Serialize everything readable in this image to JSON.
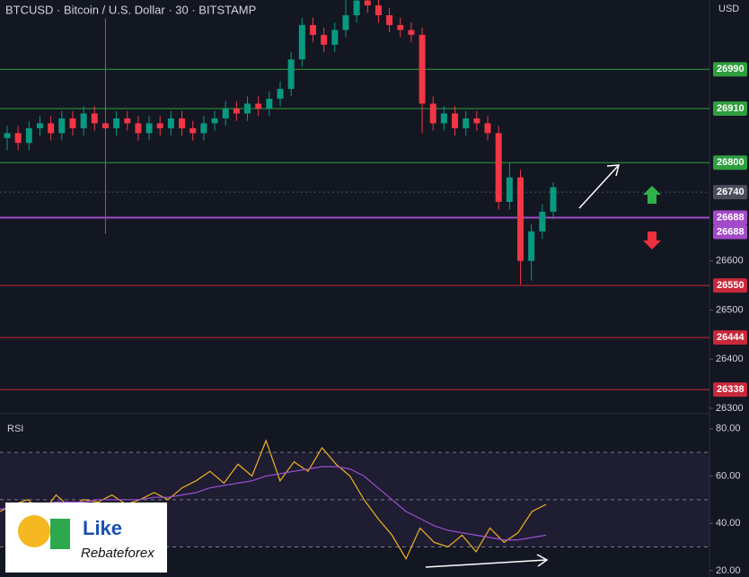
{
  "chart_data": {
    "type": "candlestick",
    "title": "BTCUSD · Bitcoin / U.S. Dollar · 30 · BITSTAMP",
    "currency": "USD",
    "up_color": "#089981",
    "down_color": "#f23645",
    "ylim": [
      26289,
      27131
    ],
    "yticks": [
      26300,
      26400,
      26500,
      26600
    ],
    "candles": [
      [
        26850,
        26875,
        26825,
        26860
      ],
      [
        26860,
        26875,
        26825,
        26840
      ],
      [
        26840,
        26885,
        26825,
        26870
      ],
      [
        26870,
        26895,
        26855,
        26880
      ],
      [
        26880,
        26895,
        26845,
        26860
      ],
      [
        26860,
        26905,
        26845,
        26890
      ],
      [
        26890,
        26905,
        26855,
        26870
      ],
      [
        26870,
        26915,
        26855,
        26900
      ],
      [
        26900,
        26915,
        26865,
        26880
      ],
      [
        26880,
        27094,
        26655,
        26870
      ],
      [
        26870,
        26905,
        26855,
        26890
      ],
      [
        26890,
        26905,
        26865,
        26880
      ],
      [
        26880,
        26895,
        26845,
        26860
      ],
      [
        26860,
        26895,
        26845,
        26880
      ],
      [
        26880,
        26895,
        26855,
        26870
      ],
      [
        26870,
        26905,
        26855,
        26890
      ],
      [
        26890,
        26905,
        26855,
        26870
      ],
      [
        26870,
        26885,
        26845,
        26860
      ],
      [
        26860,
        26895,
        26845,
        26880
      ],
      [
        26880,
        26905,
        26865,
        26890
      ],
      [
        26890,
        26925,
        26875,
        26910
      ],
      [
        26910,
        26925,
        26885,
        26900
      ],
      [
        26900,
        26935,
        26885,
        26920
      ],
      [
        26920,
        26935,
        26895,
        26910
      ],
      [
        26910,
        26945,
        26895,
        26930
      ],
      [
        26930,
        26965,
        26915,
        26950
      ],
      [
        26950,
        27025,
        26935,
        27010
      ],
      [
        27010,
        27095,
        26995,
        27080
      ],
      [
        27080,
        27095,
        27045,
        27060
      ],
      [
        27060,
        27075,
        27025,
        27040
      ],
      [
        27040,
        27085,
        27025,
        27070
      ],
      [
        27070,
        27131,
        27055,
        27100
      ],
      [
        27100,
        27131,
        27085,
        27130
      ],
      [
        27130,
        27131,
        27105,
        27120
      ],
      [
        27120,
        27131,
        27085,
        27100
      ],
      [
        27100,
        27115,
        27065,
        27080
      ],
      [
        27080,
        27095,
        27055,
        27070
      ],
      [
        27070,
        27085,
        27045,
        27060
      ],
      [
        27060,
        27075,
        26860,
        26920
      ],
      [
        26920,
        26935,
        26865,
        26880
      ],
      [
        26880,
        26915,
        26865,
        26900
      ],
      [
        26900,
        26915,
        26855,
        26870
      ],
      [
        26870,
        26905,
        26855,
        26890
      ],
      [
        26890,
        26905,
        26865,
        26880
      ],
      [
        26880,
        26895,
        26845,
        26860
      ],
      [
        26860,
        26875,
        26705,
        26720
      ],
      [
        26720,
        26800,
        26705,
        26770
      ],
      [
        26770,
        26785,
        26552,
        26600
      ],
      [
        26600,
        26675,
        26560,
        26660
      ],
      [
        26660,
        26715,
        26645,
        26700
      ],
      [
        26700,
        26760,
        26685,
        26750
      ]
    ],
    "levels": [
      {
        "value": 26990,
        "color": "#2e9e3e"
      },
      {
        "value": 26910,
        "color": "#2e9e3e"
      },
      {
        "value": 26800,
        "color": "#2e9e3e"
      },
      {
        "value": 26740,
        "color": "#4a4e59"
      },
      {
        "value": 26688,
        "color": "#a24ac9"
      },
      {
        "value": 26688,
        "color": "#a24ac9"
      },
      {
        "value": 26550,
        "color": "#c8283a"
      },
      {
        "value": 26444,
        "color": "#c8283a"
      },
      {
        "value": 26338,
        "color": "#c8283a"
      }
    ],
    "rsi": {
      "title": "RSI",
      "ylim": [
        17.3,
        86
      ],
      "yticks": [
        {
          "value": 80,
          "label": "80.00"
        },
        {
          "value": 60,
          "label": "60.00"
        },
        {
          "value": 40,
          "label": "40.00"
        },
        {
          "value": 20,
          "label": "20.00"
        }
      ],
      "bands": [
        70,
        50,
        30
      ],
      "series": [
        {
          "color": "#f2b21f",
          "values": [
            45,
            48,
            50,
            44,
            52,
            47,
            50,
            49,
            52,
            48,
            50,
            53,
            50,
            55,
            58,
            62,
            57,
            65,
            60,
            75,
            58,
            66,
            62,
            72,
            65,
            60,
            50,
            42,
            35,
            25,
            38,
            32,
            30,
            35,
            28,
            38,
            32,
            36,
            45,
            48
          ]
        },
        {
          "color": "#9c4fd0",
          "values": [
            46,
            47,
            48,
            48,
            49,
            49,
            49,
            50,
            50,
            50,
            50,
            51,
            51,
            52,
            53,
            55,
            56,
            57,
            58,
            60,
            61,
            62,
            63,
            64,
            64,
            63,
            60,
            55,
            50,
            45,
            42,
            39,
            37,
            36,
            35,
            34,
            33,
            33,
            34,
            35
          ]
        }
      ]
    },
    "logo": {
      "line1": "Like",
      "line2": "Rebateforex"
    }
  }
}
